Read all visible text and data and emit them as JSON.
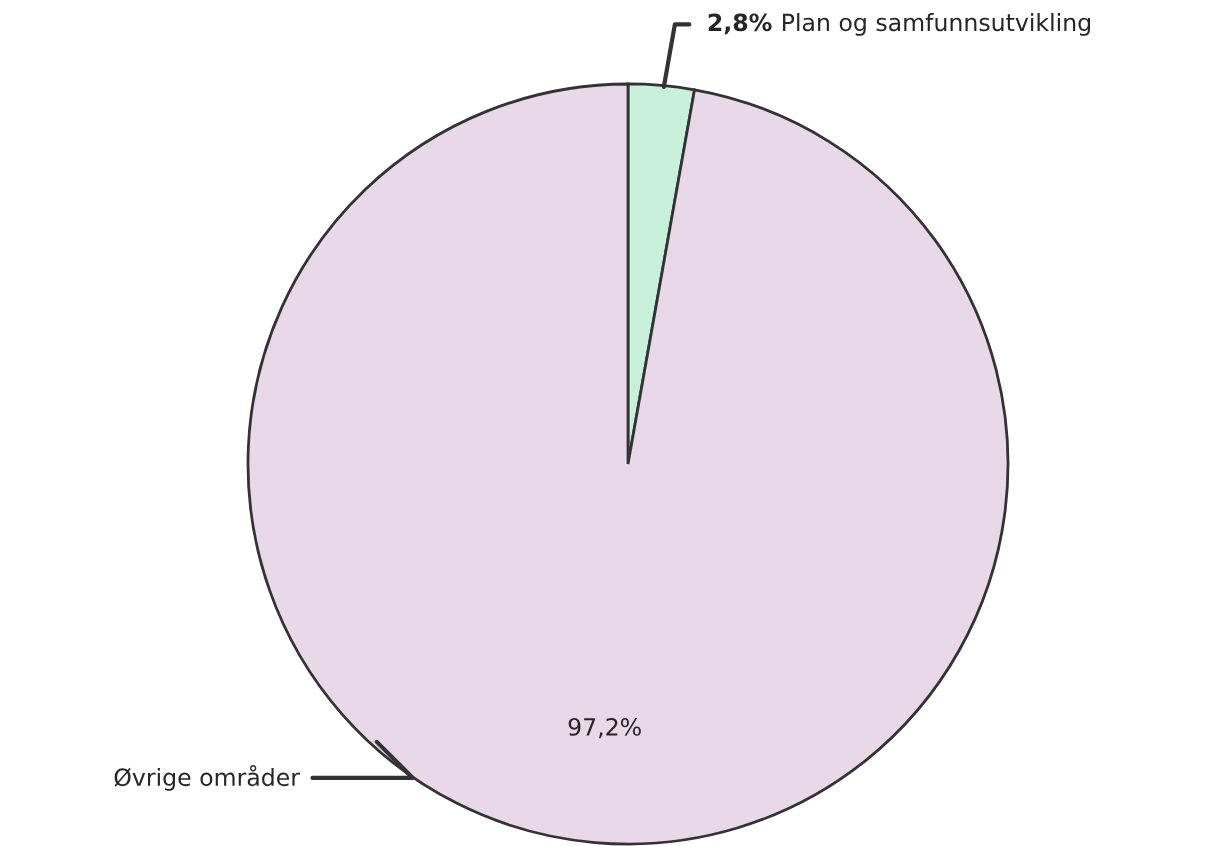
{
  "chart_data": {
    "type": "pie",
    "categories": [
      "Plan og samfunnsutvikling",
      "Øvrige områder"
    ],
    "values": [
      2.8,
      97.2
    ],
    "colors": [
      "#c8f0da",
      "#e8d8e8"
    ],
    "value_labels": [
      "2,8%",
      "97,2%"
    ]
  }
}
